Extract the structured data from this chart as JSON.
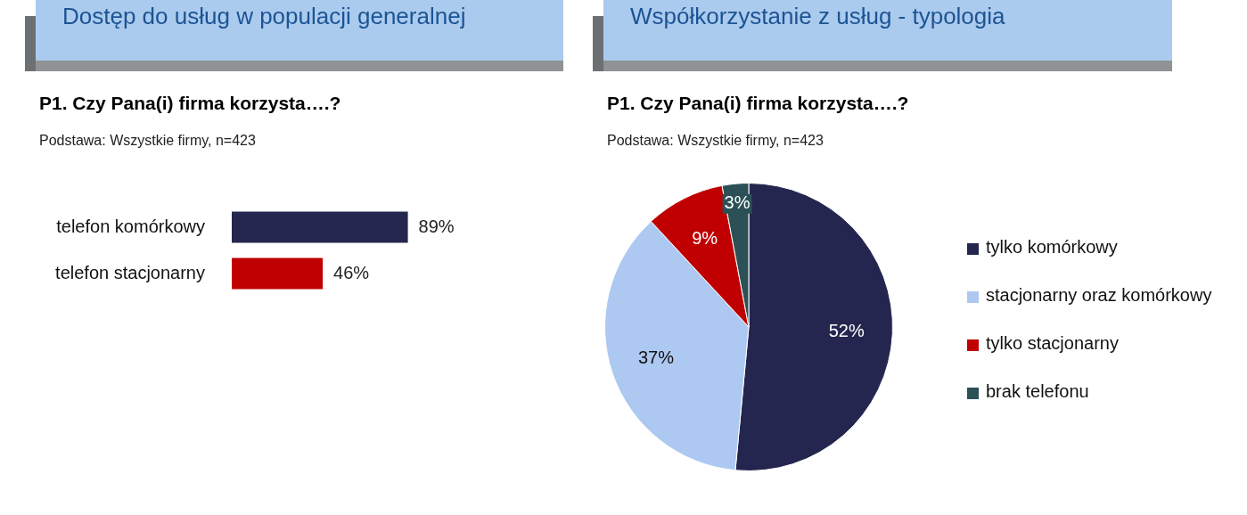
{
  "chart_data": [
    {
      "type": "bar",
      "orientation": "horizontal",
      "title": "Dostęp do usług w populacji generalnej",
      "subtitle": "P1. Czy Pana(i) firma korzysta….?",
      "annotations": [
        "Podstawa: Wszystkie firmy, n=423"
      ],
      "categories": [
        "telefon komórkowy",
        "telefon stacjonarny"
      ],
      "values": [
        89,
        46
      ],
      "colors": [
        "#25264f",
        "#c00000"
      ],
      "value_labels": [
        "89%",
        "46%"
      ],
      "tick_labels": "y",
      "legend": false
    },
    {
      "type": "pie",
      "title": "Współkorzystanie z usług - typologia",
      "subtitle": "P1. Czy Pana(i) firma korzysta….?",
      "annotations": [
        "Podstawa: Wszystkie firmy, n=423"
      ],
      "categories": [
        "tylko komórkowy",
        "stacjonarny oraz komórkowy",
        "tylko stacjonarny",
        "brak telefonu"
      ],
      "values": [
        52,
        37,
        9,
        3
      ],
      "colors": [
        "#25264f",
        "#adc9f2",
        "#c00000",
        "#2b5157"
      ],
      "value_labels": [
        "52%",
        "37%",
        "9%",
        "3%"
      ],
      "legend": "right"
    }
  ]
}
